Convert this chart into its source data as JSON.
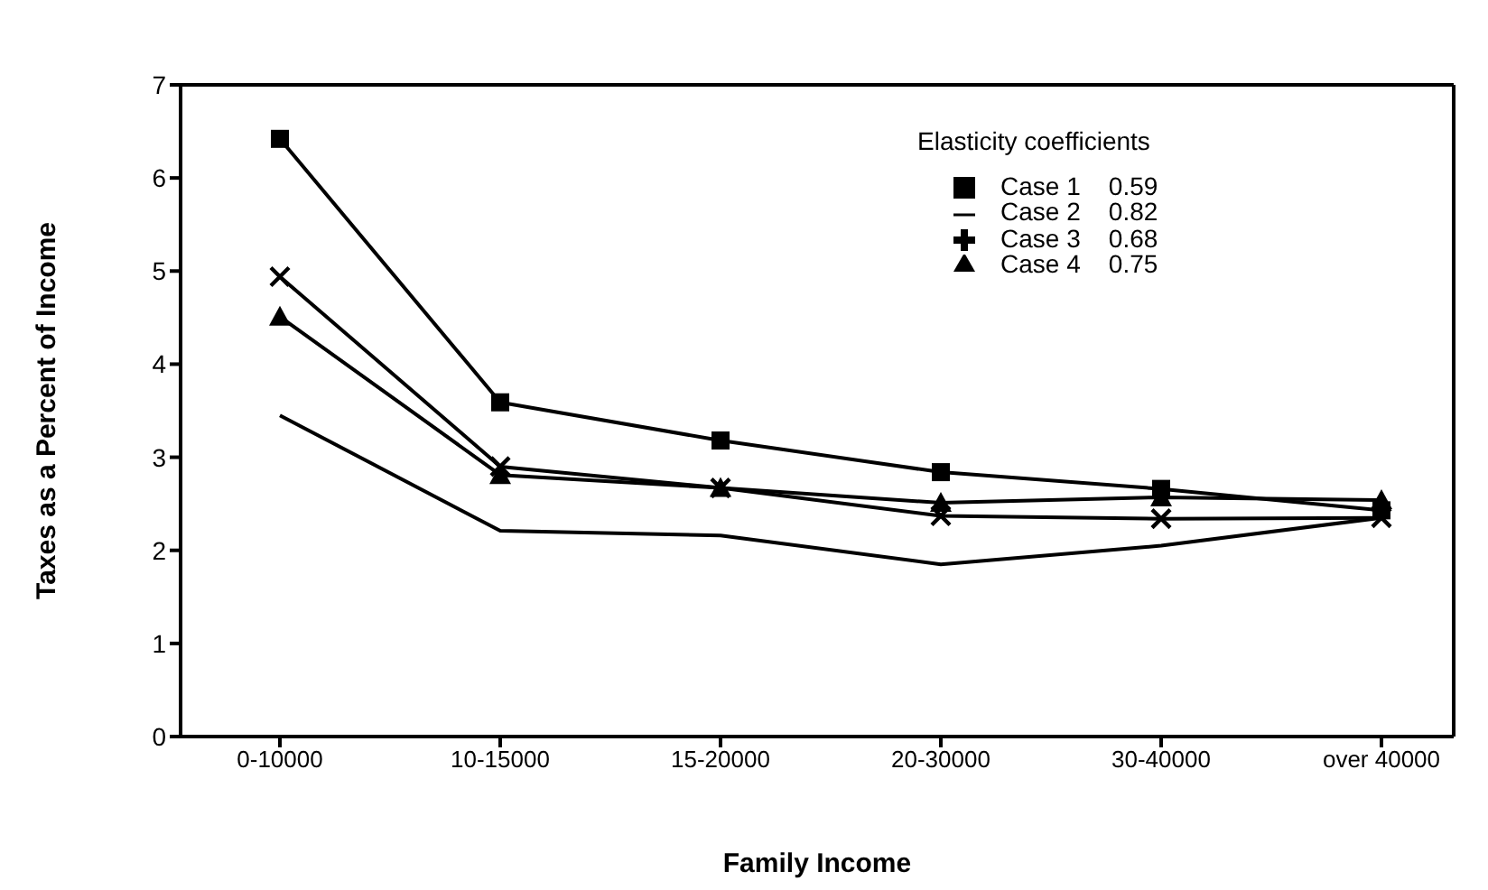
{
  "chart_data": {
    "type": "line",
    "xlabel": "Family Income",
    "ylabel": "Taxes as a Percent of Income",
    "legend_title": "Elasticity coefficients",
    "legend": "top right",
    "categories": [
      "0-10000",
      "10-15000",
      "15-20000",
      "20-30000",
      "30-40000",
      "over 40000"
    ],
    "series": [
      {
        "name": "Case 1    0.59",
        "color": "#000000",
        "marker": "square",
        "values": [
          6.42,
          3.59,
          3.18,
          2.84,
          2.66,
          2.43
        ]
      },
      {
        "name": "Case 2    0.82",
        "color": "#000000",
        "marker": "none",
        "values": [
          3.45,
          2.21,
          2.16,
          1.85,
          2.05,
          2.35
        ]
      },
      {
        "name": "Case 3    0.68",
        "color": "#000000",
        "marker": "cross",
        "values": [
          4.94,
          2.9,
          2.67,
          2.37,
          2.34,
          2.35
        ]
      },
      {
        "name": "Case 4    0.75",
        "color": "#000000",
        "marker": "triangle",
        "values": [
          4.51,
          2.81,
          2.67,
          2.51,
          2.57,
          2.54
        ]
      }
    ],
    "ylim": [
      0,
      7
    ],
    "yticks": [
      0,
      1,
      2,
      3,
      4,
      5,
      6,
      7
    ],
    "grid": false
  }
}
